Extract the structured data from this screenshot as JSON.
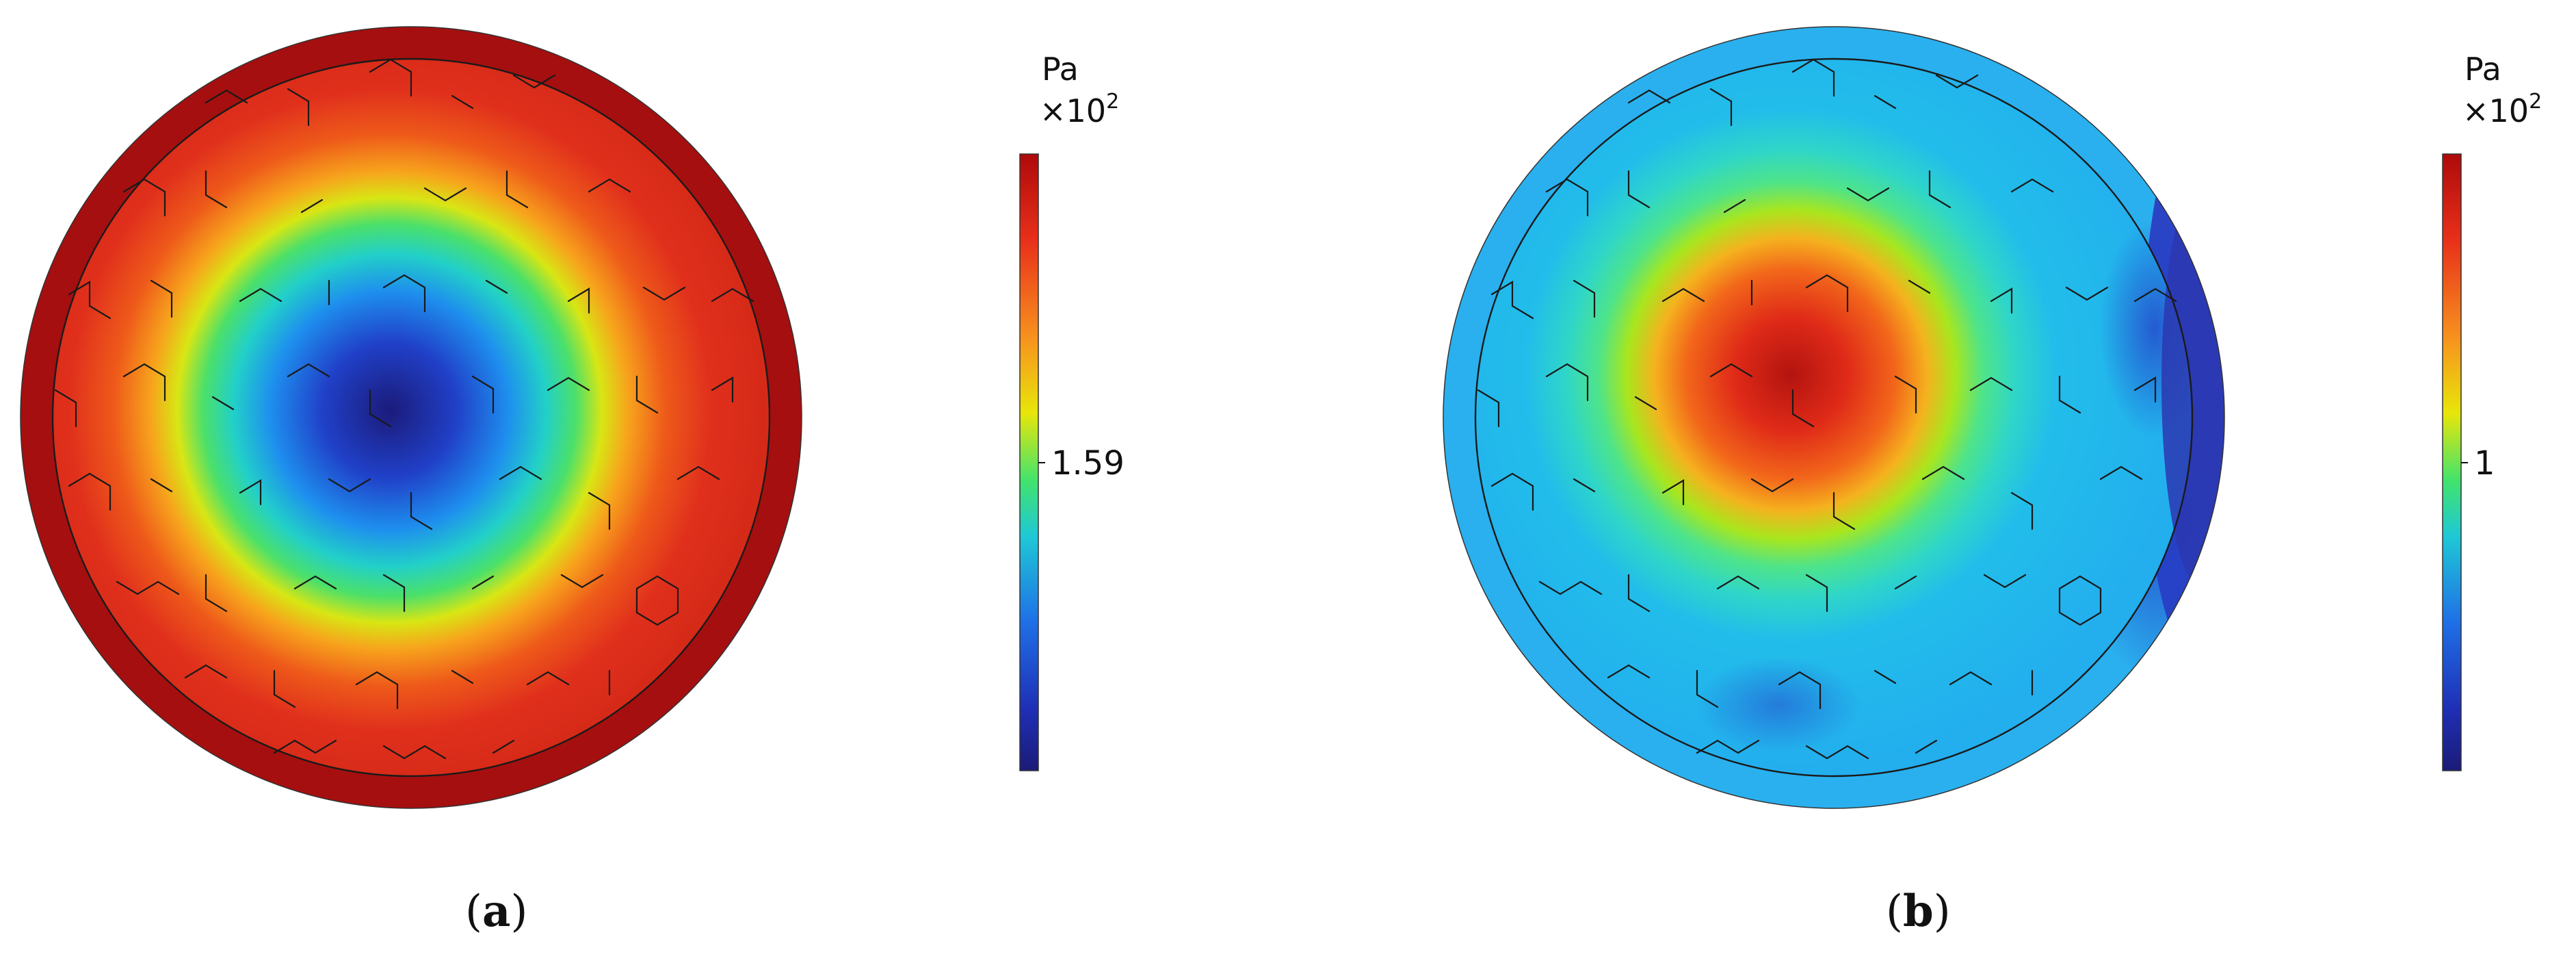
{
  "panels": [
    {
      "id": "a",
      "caption": "(a)",
      "letter": "a",
      "colorbar": {
        "unit": "Pa",
        "multiplier": "×10",
        "exponent": "2",
        "tick_label": "1.59"
      },
      "field": "low at center, high at rim",
      "colors": {
        "center": "#1a1a8c",
        "mid": "#35d17a",
        "outer": "#e8301a",
        "rim": "#a50f0f"
      }
    },
    {
      "id": "b",
      "caption": "(b)",
      "letter": "b",
      "colorbar": {
        "unit": "Pa",
        "multiplier": "×10",
        "exponent": "2",
        "tick_label": "1"
      },
      "field": "high at center, low at rim",
      "colors": {
        "center": "#c81e14",
        "mid": "#49e2a0",
        "outer": "#25b6f0",
        "rim": "#2a3fc4"
      }
    }
  ],
  "colormap": [
    "#ae0a0a",
    "#e8301a",
    "#f7931e",
    "#e8e60a",
    "#41e36d",
    "#1fc8d6",
    "#1f6fe6",
    "#1f2fb5",
    "#1b1b78"
  ]
}
